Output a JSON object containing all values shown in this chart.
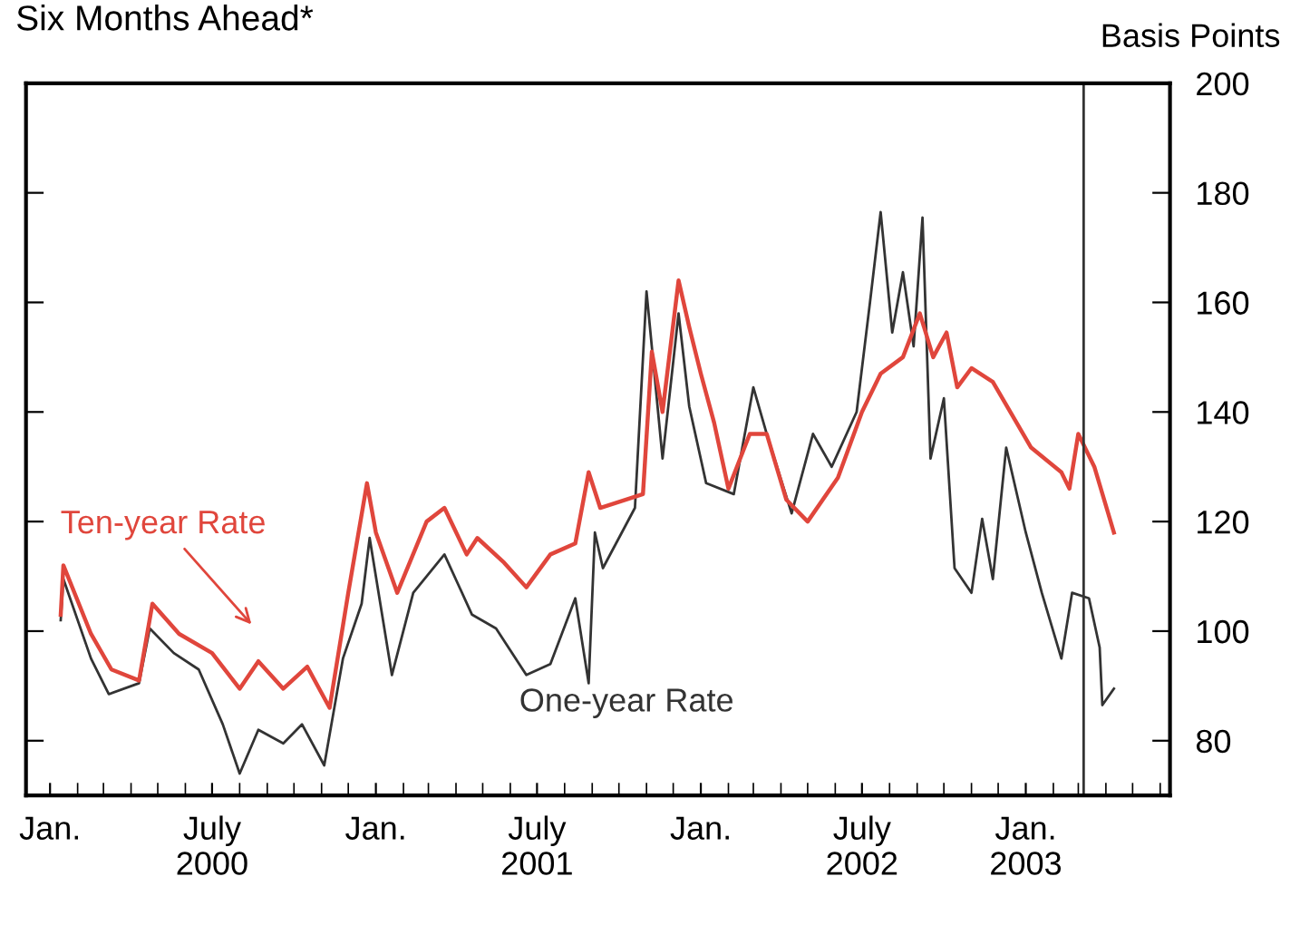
{
  "chart_data": {
    "type": "line",
    "title": "Six Months Ahead*",
    "ylabel": "Basis Points",
    "xlim": [
      "1999-12-05",
      "2003-06-12"
    ],
    "ylim": [
      70,
      200
    ],
    "yticks": [
      80,
      100,
      120,
      140,
      160,
      180,
      200
    ],
    "xticks": [
      {
        "value": "2000-01-01",
        "label": "Jan."
      },
      {
        "value": "2000-07-01",
        "label": "July\n2000"
      },
      {
        "value": "2001-01-01",
        "label": "Jan."
      },
      {
        "value": "2001-07-01",
        "label": "July\n2001"
      },
      {
        "value": "2002-01-01",
        "label": "Jan."
      },
      {
        "value": "2002-07-01",
        "label": "July\n2002"
      },
      {
        "value": "2003-01-01",
        "label": "Jan.\n2003"
      }
    ],
    "grid": false,
    "line_style": "solid",
    "marker": "none",
    "ref_lines": [
      {
        "axis": "x",
        "value": "2003-03-07",
        "label": null,
        "color": "#333333"
      }
    ],
    "annotations": [
      "Ten-year Rate",
      "One-year Rate"
    ],
    "series": [
      {
        "color": "#333333",
        "x": [
          "2000-01-13",
          "2000-01-16",
          "2000-02-16",
          "2000-03-07",
          "2000-04-10",
          "2000-04-22",
          "2000-05-19",
          "2000-06-16",
          "2000-07-13",
          "2000-08-01",
          "2000-08-22",
          "2000-09-19",
          "2000-10-10",
          "2000-11-04",
          "2000-11-25",
          "2000-12-16",
          "2000-12-25",
          "2001-01-19",
          "2001-02-12",
          "2001-03-19",
          "2001-04-19",
          "2001-05-16",
          "2001-06-19",
          "2001-07-16",
          "2001-08-13",
          "2001-08-28",
          "2001-09-04",
          "2001-09-13",
          "2001-10-19",
          "2001-11-01",
          "2001-11-19",
          "2001-12-07",
          "2001-12-19",
          "2002-01-07",
          "2002-02-07",
          "2002-03-01",
          "2002-03-16",
          "2002-04-13",
          "2002-05-07",
          "2002-05-28",
          "2002-06-25",
          "2002-07-10",
          "2002-07-22",
          "2002-08-04",
          "2002-08-16",
          "2002-08-28",
          "2002-09-07",
          "2002-09-16",
          "2002-10-01",
          "2002-10-13",
          "2002-11-01",
          "2002-11-13",
          "2002-11-25",
          "2002-12-10",
          "2003-01-01",
          "2003-01-19",
          "2003-02-10",
          "2003-02-22",
          "2003-03-13",
          "2003-03-25",
          "2003-03-28",
          "2003-04-10"
        ],
        "values": [
          102,
          109.5,
          95,
          88.5,
          90.5,
          100.5,
          96,
          93,
          83,
          74,
          82,
          79.5,
          83,
          75.5,
          95,
          105,
          117,
          92,
          107,
          114,
          103,
          100.5,
          92,
          94,
          106,
          90.5,
          118,
          111.5,
          122.5,
          162,
          131.5,
          158,
          141,
          127,
          125,
          144.5,
          136,
          121.5,
          136,
          130,
          140,
          160,
          176.5,
          154.5,
          165.5,
          152,
          175.5,
          131.5,
          142.5,
          111.5,
          107,
          120.5,
          109.5,
          133.5,
          118,
          107,
          95,
          107,
          106,
          97,
          86.5,
          89.5
        ]
      },
      {
        "color": "#e0463c",
        "x": [
          "2000-01-13",
          "2000-01-16",
          "2000-02-16",
          "2000-03-10",
          "2000-04-10",
          "2000-04-25",
          "2000-05-25",
          "2000-07-01",
          "2000-08-01",
          "2000-08-22",
          "2000-09-19",
          "2000-10-16",
          "2000-11-10",
          "2000-12-01",
          "2000-12-22",
          "2001-01-01",
          "2001-01-25",
          "2001-02-27",
          "2001-03-19",
          "2001-04-13",
          "2001-04-25",
          "2001-05-25",
          "2001-06-19",
          "2001-07-16",
          "2001-08-13",
          "2001-08-28",
          "2001-09-10",
          "2001-10-28",
          "2001-11-07",
          "2001-11-19",
          "2001-12-07",
          "2001-12-19",
          "2002-01-01",
          "2002-01-16",
          "2002-02-01",
          "2002-02-25",
          "2002-03-16",
          "2002-04-07",
          "2002-05-01",
          "2002-06-04",
          "2002-07-01",
          "2002-07-22",
          "2002-08-16",
          "2002-09-04",
          "2002-09-19",
          "2002-10-04",
          "2002-10-16",
          "2002-11-01",
          "2002-11-25",
          "2003-01-07",
          "2003-02-10",
          "2003-02-19",
          "2003-03-01",
          "2003-03-19",
          "2003-04-10"
        ],
        "values": [
          103,
          112,
          99.5,
          93,
          91,
          105,
          99.5,
          96,
          89.5,
          94.5,
          89.5,
          93.5,
          86,
          107,
          127,
          118,
          107,
          120,
          122.5,
          114,
          117,
          112.5,
          108,
          114,
          116,
          129,
          122.5,
          125,
          151,
          140,
          164,
          155.5,
          147,
          138,
          126,
          136,
          136,
          124,
          120,
          128,
          140,
          147,
          150,
          158,
          150,
          154.5,
          144.5,
          148,
          145.5,
          133.5,
          129,
          126,
          136,
          130,
          118
        ]
      }
    ]
  }
}
